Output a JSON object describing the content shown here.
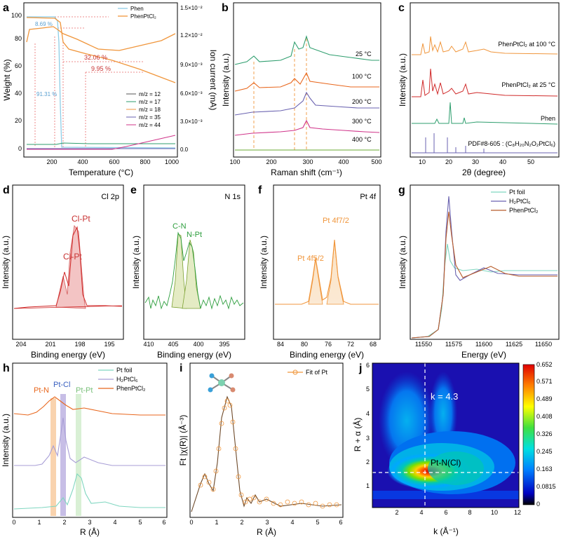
{
  "panels": {
    "a": {
      "letter": "a",
      "xlabel": "Temperature (°C)",
      "ylabel": "Weight (%)",
      "y2label": "Ion current (mA)",
      "xticks": [
        "200",
        "400",
        "600",
        "800",
        "1000"
      ],
      "yticks": [
        "0",
        "20",
        "40",
        "60",
        "80",
        "100"
      ],
      "y2ticks": [
        "0.0",
        "3.0×10⁻³",
        "6.0×10⁻³",
        "9.0×10⁻³",
        "1.2×10⁻²",
        "1.5×10⁻²"
      ],
      "ann1": "8.69 %",
      "ann2": "32.06 %",
      "ann3": "9.95 %",
      "ann4": "91.31 %",
      "legend1": [
        "Phen",
        "PhenPtCl₂"
      ],
      "legend2": [
        "m/z = 12",
        "m/z = 17",
        "m/z = 18",
        "m/z = 35",
        "m/z = 44"
      ]
    },
    "b": {
      "letter": "b",
      "xlabel": "Raman shift (cm⁻¹)",
      "ylabel": "Intensity (a.u.)",
      "xticks": [
        "100",
        "200",
        "300",
        "400",
        "500"
      ],
      "labels": [
        "25 °C",
        "100 °C",
        "200 °C",
        "300 °C",
        "400 °C"
      ]
    },
    "c": {
      "letter": "c",
      "xlabel": "2θ (degree)",
      "ylabel": "Intensity (a.u.)",
      "xticks": [
        "10",
        "20",
        "30",
        "40",
        "50"
      ],
      "labels": [
        "PhenPtCl₂ at 100 °C",
        "PhenPtCl₂ at 25 °C",
        "Phen",
        "PDF#8-605 : (C₈H₂₀N₂O₂PtCl₆)"
      ]
    },
    "d": {
      "letter": "d",
      "title": "Cl 2p",
      "xlabel": "Binding energy (eV)",
      "ylabel": "Intensity (a.u.)",
      "xticks": [
        "204",
        "201",
        "198",
        "195"
      ],
      "peak1": "Cl-Pt",
      "peak2": "Cl-Pt"
    },
    "e": {
      "letter": "e",
      "title": "N 1s",
      "xlabel": "Binding energy (eV)",
      "ylabel": "Intensity (a.u.)",
      "xticks": [
        "410",
        "405",
        "400",
        "395"
      ],
      "peak1": "C-N",
      "peak2": "N-Pt"
    },
    "f": {
      "letter": "f",
      "title": "Pt 4f",
      "xlabel": "Binding energy (eV)",
      "ylabel": "Intensity (a.u.)",
      "xticks": [
        "84",
        "80",
        "76",
        "72",
        "68"
      ],
      "peak1": "Pt 4f5/2",
      "peak2": "Pt 4f7/2"
    },
    "g": {
      "letter": "g",
      "xlabel": "Energy (eV)",
      "ylabel": "Intensity (a.u.)",
      "xticks": [
        "11550",
        "11575",
        "11600",
        "11625",
        "11650"
      ],
      "legend": [
        "Pt foil",
        "H₂PtCl₆",
        "PhenPtCl₂"
      ]
    },
    "h": {
      "letter": "h",
      "xlabel": "R (Å)",
      "ylabel": "Intensity (a.u.)",
      "xticks": [
        "0",
        "1",
        "2",
        "3",
        "4",
        "5",
        "6"
      ],
      "legend": [
        "Pt foil",
        "H₂PtCl₆",
        "PhenPtCl₂"
      ],
      "ann": [
        "Pt-N",
        "Pt-Cl",
        "Pt-Pt"
      ]
    },
    "i": {
      "letter": "i",
      "xlabel": "R (Å)",
      "ylabel": "Ft |χ(R)| (Å⁻³)",
      "xticks": [
        "0",
        "1",
        "2",
        "3",
        "4",
        "5",
        "6"
      ],
      "legend": [
        "Fit of Pt"
      ]
    },
    "j": {
      "letter": "j",
      "xlabel": "k (Å⁻¹)",
      "ylabel": "R + α (Å)",
      "xticks": [
        "2",
        "4",
        "6",
        "8",
        "10",
        "12"
      ],
      "yticks": [
        "1",
        "2",
        "3",
        "4",
        "5",
        "6"
      ],
      "klabel": "k = 4.3",
      "spot": "Pt-N(Cl)",
      "cbar": [
        "0.652",
        "0.571",
        "0.489",
        "0.408",
        "0.326",
        "0.245",
        "0.163",
        "0.0815",
        "0"
      ]
    }
  },
  "colors": {
    "phen": "#8ecde6",
    "ptcl": "#f0963c",
    "orange": "#e8661c",
    "green": "#2e9e6e",
    "purple": "#6a62b0",
    "pink": "#d0348a",
    "red": "#c83232",
    "gray": "#555555",
    "teal": "#7fd6c0",
    "lilac": "#a89ed6",
    "brown": "#b85c2a"
  },
  "chart_data": [
    {
      "panel": "a",
      "type": "line",
      "xlabel": "Temperature (°C)",
      "ylabel": "Weight (%)",
      "xlim": [
        0,
        1000
      ],
      "ylim": [
        -5,
        105
      ],
      "series": [
        {
          "name": "Phen",
          "x": [
            20,
            100,
            150,
            200,
            230,
            250,
            260,
            270,
            300,
            1000
          ],
          "y": [
            100,
            99.5,
            99,
            97,
            85,
            40,
            10,
            2,
            0.5,
            0
          ]
        },
        {
          "name": "PhenPtCl₂",
          "x": [
            20,
            180,
            220,
            260,
            280,
            320,
            400,
            600,
            800,
            1000
          ],
          "y": [
            98,
            97.5,
            96,
            92,
            76,
            66,
            60,
            49,
            42,
            34
          ]
        }
      ]
    },
    {
      "panel": "a",
      "type": "line",
      "ylabel": "Ion current (mA)",
      "ylim": [
        -0.0015,
        0.0155
      ],
      "series": [
        {
          "name": "m/z = 12",
          "values": "flat near 0"
        },
        {
          "name": "m/z = 18",
          "x": [
            20,
            220,
            260,
            400,
            600,
            800,
            1000
          ],
          "y": [
            0.0118,
            0.0122,
            0.0118,
            0.0105,
            0.0098,
            0.0105,
            0.012
          ]
        },
        {
          "name": "m/z = 44",
          "x": [
            20,
            500,
            600,
            800,
            1000
          ],
          "y": [
            0.0002,
            0.0003,
            0.0008,
            0.0015,
            0.0022
          ]
        }
      ]
    },
    {
      "panel": "b",
      "type": "line",
      "xlabel": "Raman shift (cm⁻¹)",
      "xlim": [
        100,
        500
      ],
      "series": [
        {
          "name": "25 °C"
        },
        {
          "name": "100 °C"
        },
        {
          "name": "200 °C"
        },
        {
          "name": "300 °C"
        },
        {
          "name": "400 °C"
        }
      ]
    },
    {
      "panel": "c",
      "type": "line",
      "xlabel": "2θ (degree)",
      "xlim": [
        5,
        55
      ]
    },
    {
      "panel": "d",
      "type": "line",
      "xlabel": "Binding energy (eV)",
      "peaks": [
        {
          "x": 199.6,
          "label": "Cl-Pt"
        },
        {
          "x": 198.1,
          "label": "Cl-Pt"
        }
      ]
    },
    {
      "panel": "e",
      "type": "line",
      "xlabel": "Binding energy (eV)",
      "peaks": [
        {
          "x": 400.8,
          "label": "C-N"
        },
        {
          "x": 398.6,
          "label": "N-Pt"
        }
      ]
    },
    {
      "panel": "f",
      "type": "line",
      "xlabel": "Binding energy (eV)",
      "peaks": [
        {
          "x": 76.7,
          "label": "Pt 4f5/2"
        },
        {
          "x": 73.4,
          "label": "Pt 4f7/2"
        }
      ]
    },
    {
      "panel": "g",
      "type": "line",
      "xlabel": "Energy (eV)",
      "whiteline": 11567
    },
    {
      "panel": "h",
      "type": "line",
      "xlabel": "R (Å)",
      "peaks": [
        {
          "x": 1.6,
          "label": "Pt-N"
        },
        {
          "x": 1.95,
          "label": "Pt-Cl"
        },
        {
          "x": 2.65,
          "label": "Pt-Pt"
        }
      ]
    },
    {
      "panel": "i",
      "type": "line",
      "xlabel": "R (Å)",
      "peak": 1.6
    },
    {
      "panel": "j",
      "type": "heatmap",
      "xlabel": "k (Å⁻¹)",
      "ylabel": "R + α (Å)",
      "xlim": [
        0,
        12
      ],
      "ylim": [
        0,
        6
      ],
      "max": {
        "k": 4.3,
        "R": 1.6,
        "value": 0.652
      }
    }
  ]
}
